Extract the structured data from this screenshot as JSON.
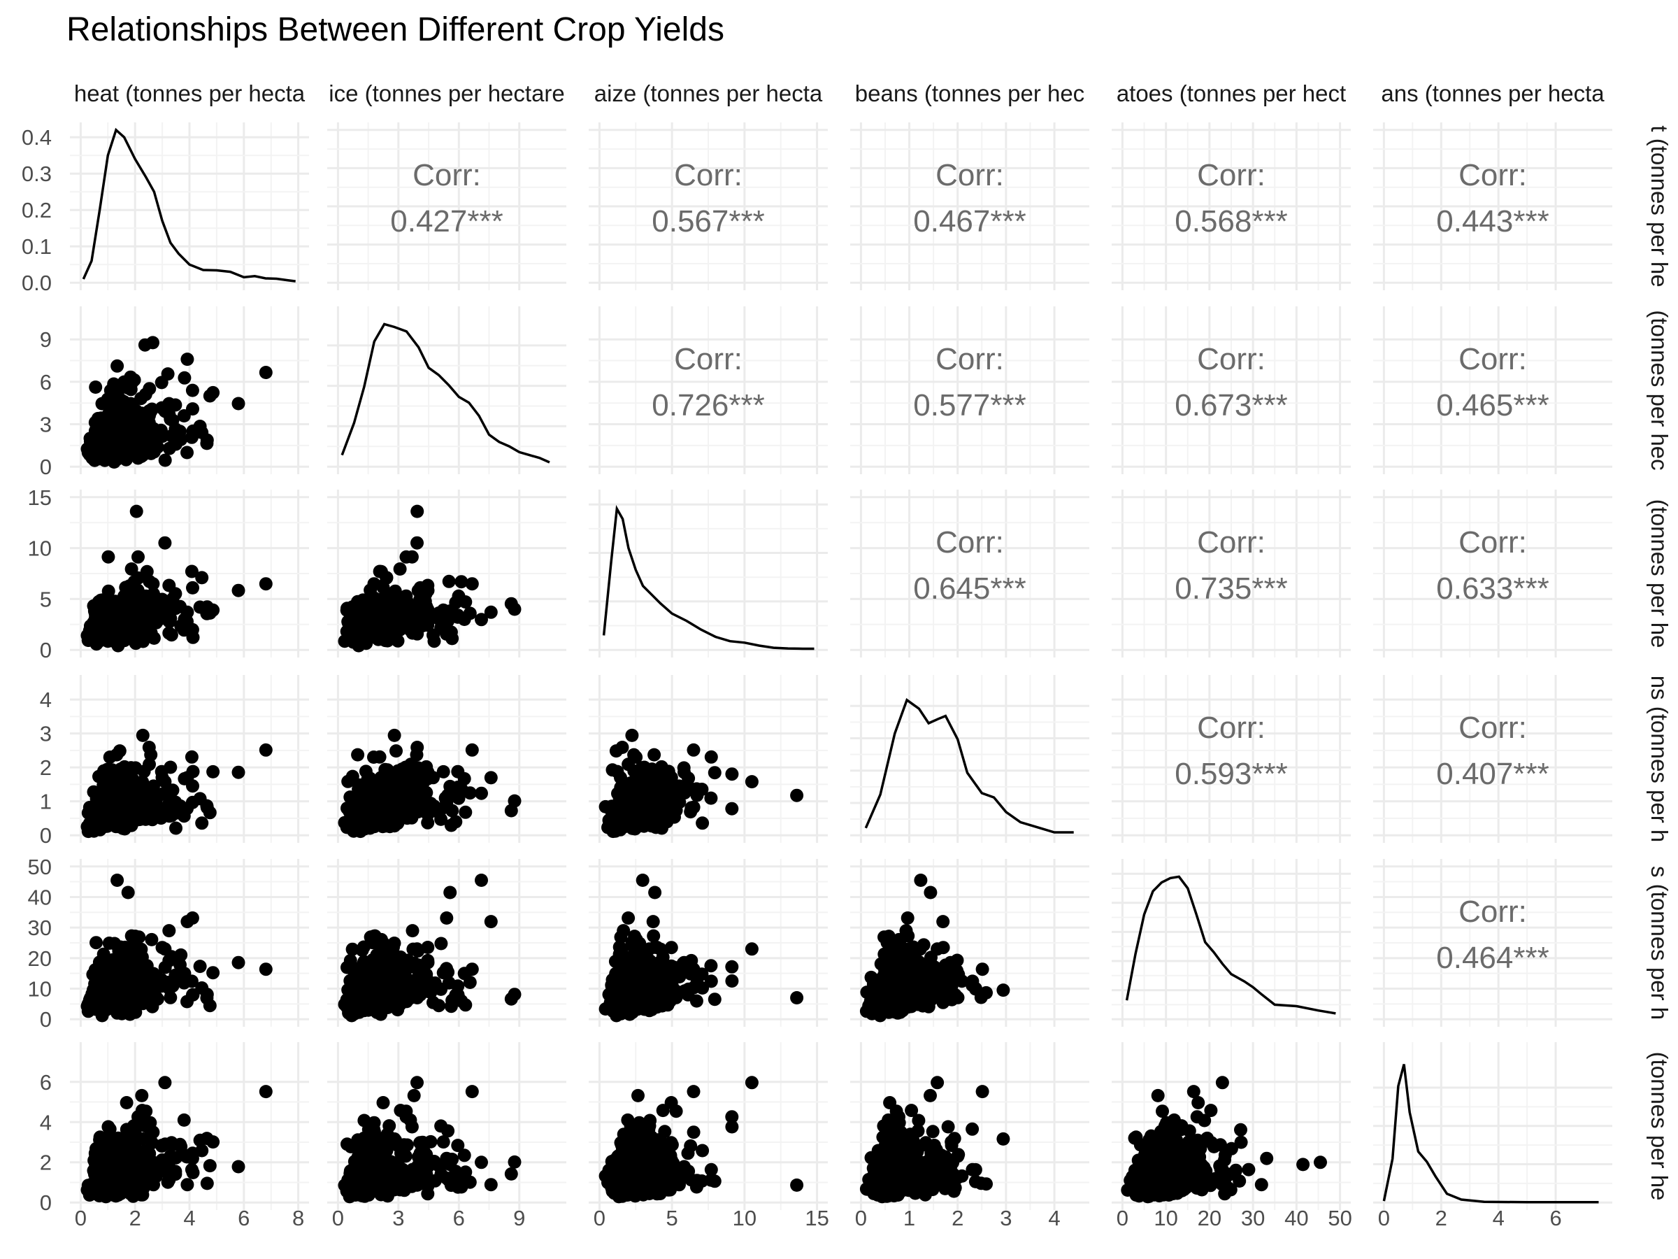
{
  "chart_data": {
    "type": "scatter",
    "title": "Relationships Between Different Crop Yields",
    "variables": [
      {
        "label": "Wheat (tonnes per hectare)",
        "visible_label": "heat (tonnes per hecta",
        "visible_row_label": "t (tonnes per he",
        "axis": [
          0,
          8
        ],
        "ticks": [
          0,
          2,
          4,
          6,
          8
        ]
      },
      {
        "label": "Rice (tonnes per hectare)",
        "visible_label": "ice (tonnes per hectare",
        "visible_row_label": "(tonnes per hec",
        "axis": [
          0,
          10.8
        ],
        "ticks": [
          0,
          3,
          6,
          9
        ]
      },
      {
        "label": "Maize (tonnes per hectare)",
        "visible_label": "aize (tonnes per hecta",
        "visible_row_label": "(tonnes per he",
        "axis": [
          0,
          15
        ],
        "ticks": [
          0,
          5,
          10,
          15
        ]
      },
      {
        "label": "Soybeans (tonnes per hectare)",
        "visible_label": "beans (tonnes per hec",
        "visible_row_label": "ns (tonnes per h",
        "axis": [
          0,
          4.5
        ],
        "ticks": [
          0,
          1,
          2,
          3,
          4
        ]
      },
      {
        "label": "Potatoes (tonnes per hectare)",
        "visible_label": "atoes (tonnes per hect",
        "visible_row_label": "s (tonnes per h",
        "axis": [
          0,
          50
        ],
        "ticks": [
          0,
          10,
          20,
          30,
          40,
          50
        ]
      },
      {
        "label": "Beans (tonnes per hectare)",
        "visible_label": "ans (tonnes per hecta",
        "visible_row_label": "(tonnes per he",
        "axis": [
          0,
          7.6
        ],
        "ticks": [
          0,
          2,
          4,
          6
        ]
      }
    ],
    "density_yaxis": {
      "range": [
        0,
        0.42
      ],
      "ticks": [
        0.0,
        0.1,
        0.2,
        0.3,
        0.4
      ],
      "tick_labels": [
        "0.0",
        "0.1",
        "0.2",
        "0.3",
        "0.4"
      ]
    },
    "correlations": [
      {
        "row": 0,
        "col": 1,
        "label": "Corr:",
        "value": "0.427***"
      },
      {
        "row": 0,
        "col": 2,
        "label": "Corr:",
        "value": "0.567***"
      },
      {
        "row": 0,
        "col": 3,
        "label": "Corr:",
        "value": "0.467***"
      },
      {
        "row": 0,
        "col": 4,
        "label": "Corr:",
        "value": "0.568***"
      },
      {
        "row": 0,
        "col": 5,
        "label": "Corr:",
        "value": "0.443***"
      },
      {
        "row": 1,
        "col": 2,
        "label": "Corr:",
        "value": "0.726***"
      },
      {
        "row": 1,
        "col": 3,
        "label": "Corr:",
        "value": "0.577***"
      },
      {
        "row": 1,
        "col": 4,
        "label": "Corr:",
        "value": "0.673***"
      },
      {
        "row": 1,
        "col": 5,
        "label": "Corr:",
        "value": "0.465***"
      },
      {
        "row": 2,
        "col": 3,
        "label": "Corr:",
        "value": "0.645***"
      },
      {
        "row": 2,
        "col": 4,
        "label": "Corr:",
        "value": "0.735***"
      },
      {
        "row": 2,
        "col": 5,
        "label": "Corr:",
        "value": "0.633***"
      },
      {
        "row": 3,
        "col": 4,
        "label": "Corr:",
        "value": "0.593***"
      },
      {
        "row": 3,
        "col": 5,
        "label": "Corr:",
        "value": "0.407***"
      },
      {
        "row": 4,
        "col": 5,
        "label": "Corr:",
        "value": "0.464***"
      }
    ],
    "densities": [
      {
        "var": 0,
        "points": [
          [
            0.1,
            0.01
          ],
          [
            0.4,
            0.06
          ],
          [
            0.7,
            0.2
          ],
          [
            1.0,
            0.35
          ],
          [
            1.3,
            0.42
          ],
          [
            1.6,
            0.4
          ],
          [
            2.0,
            0.34
          ],
          [
            2.4,
            0.29
          ],
          [
            2.7,
            0.25
          ],
          [
            3.0,
            0.17
          ],
          [
            3.3,
            0.11
          ],
          [
            3.6,
            0.08
          ],
          [
            4.0,
            0.05
          ],
          [
            4.5,
            0.035
          ],
          [
            5.0,
            0.034
          ],
          [
            5.5,
            0.03
          ],
          [
            6.0,
            0.015
          ],
          [
            6.4,
            0.018
          ],
          [
            6.8,
            0.012
          ],
          [
            7.2,
            0.011
          ],
          [
            7.6,
            0.007
          ],
          [
            7.9,
            0.004
          ]
        ]
      },
      {
        "var": 1,
        "points": [
          [
            0.2,
            0.08
          ],
          [
            0.8,
            0.3
          ],
          [
            1.3,
            0.55
          ],
          [
            1.8,
            0.86
          ],
          [
            2.3,
            0.98
          ],
          [
            2.8,
            0.96
          ],
          [
            3.4,
            0.93
          ],
          [
            4.0,
            0.82
          ],
          [
            4.5,
            0.68
          ],
          [
            5.0,
            0.63
          ],
          [
            5.5,
            0.56
          ],
          [
            6.0,
            0.48
          ],
          [
            6.5,
            0.44
          ],
          [
            7.0,
            0.35
          ],
          [
            7.5,
            0.22
          ],
          [
            8.0,
            0.17
          ],
          [
            8.5,
            0.14
          ],
          [
            9.0,
            0.1
          ],
          [
            9.5,
            0.08
          ],
          [
            10.0,
            0.06
          ],
          [
            10.5,
            0.03
          ]
        ]
      },
      {
        "var": 2,
        "points": [
          [
            0.3,
            0.1
          ],
          [
            0.8,
            0.6
          ],
          [
            1.2,
            0.97
          ],
          [
            1.6,
            0.9
          ],
          [
            2.0,
            0.7
          ],
          [
            2.5,
            0.55
          ],
          [
            3.0,
            0.44
          ],
          [
            3.6,
            0.38
          ],
          [
            4.2,
            0.32
          ],
          [
            5.0,
            0.25
          ],
          [
            6.0,
            0.2
          ],
          [
            7.0,
            0.14
          ],
          [
            8.0,
            0.09
          ],
          [
            9.0,
            0.06
          ],
          [
            10.0,
            0.05
          ],
          [
            11.0,
            0.03
          ],
          [
            12.0,
            0.015
          ],
          [
            13.0,
            0.01
          ],
          [
            14.0,
            0.008
          ],
          [
            14.8,
            0.008
          ]
        ]
      },
      {
        "var": 3,
        "points": [
          [
            0.1,
            0.05
          ],
          [
            0.4,
            0.28
          ],
          [
            0.7,
            0.7
          ],
          [
            0.95,
            0.93
          ],
          [
            1.2,
            0.87
          ],
          [
            1.4,
            0.77
          ],
          [
            1.6,
            0.8
          ],
          [
            1.75,
            0.82
          ],
          [
            2.0,
            0.66
          ],
          [
            2.2,
            0.43
          ],
          [
            2.5,
            0.29
          ],
          [
            2.75,
            0.26
          ],
          [
            3.0,
            0.16
          ],
          [
            3.3,
            0.09
          ],
          [
            3.7,
            0.05
          ],
          [
            4.0,
            0.02
          ],
          [
            4.4,
            0.02
          ]
        ]
      },
      {
        "var": 4,
        "points": [
          [
            1,
            0.13
          ],
          [
            3,
            0.45
          ],
          [
            5,
            0.72
          ],
          [
            7,
            0.88
          ],
          [
            9,
            0.94
          ],
          [
            11,
            0.97
          ],
          [
            13,
            0.98
          ],
          [
            15,
            0.9
          ],
          [
            17,
            0.72
          ],
          [
            19,
            0.53
          ],
          [
            21,
            0.46
          ],
          [
            23,
            0.38
          ],
          [
            25,
            0.31
          ],
          [
            28,
            0.26
          ],
          [
            30,
            0.22
          ],
          [
            32,
            0.17
          ],
          [
            35,
            0.1
          ],
          [
            40,
            0.09
          ],
          [
            45,
            0.06
          ],
          [
            49,
            0.04
          ]
        ]
      },
      {
        "var": 5,
        "points": [
          [
            0.0,
            0.01
          ],
          [
            0.3,
            0.3
          ],
          [
            0.5,
            0.8
          ],
          [
            0.7,
            0.95
          ],
          [
            0.9,
            0.62
          ],
          [
            1.2,
            0.35
          ],
          [
            1.5,
            0.28
          ],
          [
            1.8,
            0.18
          ],
          [
            2.2,
            0.06
          ],
          [
            2.7,
            0.02
          ],
          [
            3.5,
            0.005
          ],
          [
            5.0,
            0.002
          ],
          [
            7.5,
            0.002
          ]
        ]
      }
    ],
    "scatter_count_per_panel": 450,
    "grid": true,
    "point_color": "#000000",
    "correlation_text_color": "#6b6b6b",
    "grid_color": "#ebebeb",
    "strip_text_color": "#1a1a1a"
  }
}
